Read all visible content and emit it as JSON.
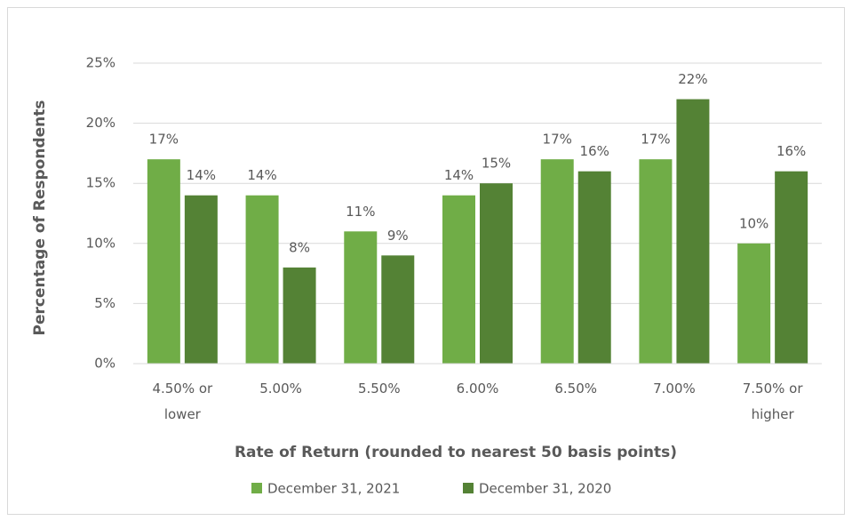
{
  "chart_data": {
    "type": "bar",
    "x_label": "Rate of Return (rounded to nearest 50 basis points)",
    "y_label": "Percentage of Respondents",
    "categories": [
      "4.50% or lower",
      "5.00%",
      "5.50%",
      "6.00%",
      "6.50%",
      "7.00%",
      "7.50% or higher"
    ],
    "series": [
      {
        "name": "December 31, 2021",
        "color": "#70ad47",
        "values": [
          17,
          14,
          11,
          14,
          17,
          17,
          10
        ],
        "value_labels": [
          "17%",
          "14%",
          "11%",
          "14%",
          "17%",
          "17%",
          "10%"
        ]
      },
      {
        "name": "December 31, 2020",
        "color": "#548235",
        "values": [
          14,
          8,
          9,
          15,
          16,
          22,
          16
        ],
        "value_labels": [
          "14%",
          "8%",
          "9%",
          "15%",
          "16%",
          "22%",
          "16%"
        ]
      }
    ],
    "ylim": [
      0,
      25
    ],
    "yticks": [
      {
        "value": 0,
        "label": "0%"
      },
      {
        "value": 5,
        "label": "5%"
      },
      {
        "value": 10,
        "label": "10%"
      },
      {
        "value": 15,
        "label": "15%"
      },
      {
        "value": 20,
        "label": "20%"
      },
      {
        "value": 25,
        "label": "25%"
      }
    ],
    "grid": true,
    "legend": "bottom"
  }
}
